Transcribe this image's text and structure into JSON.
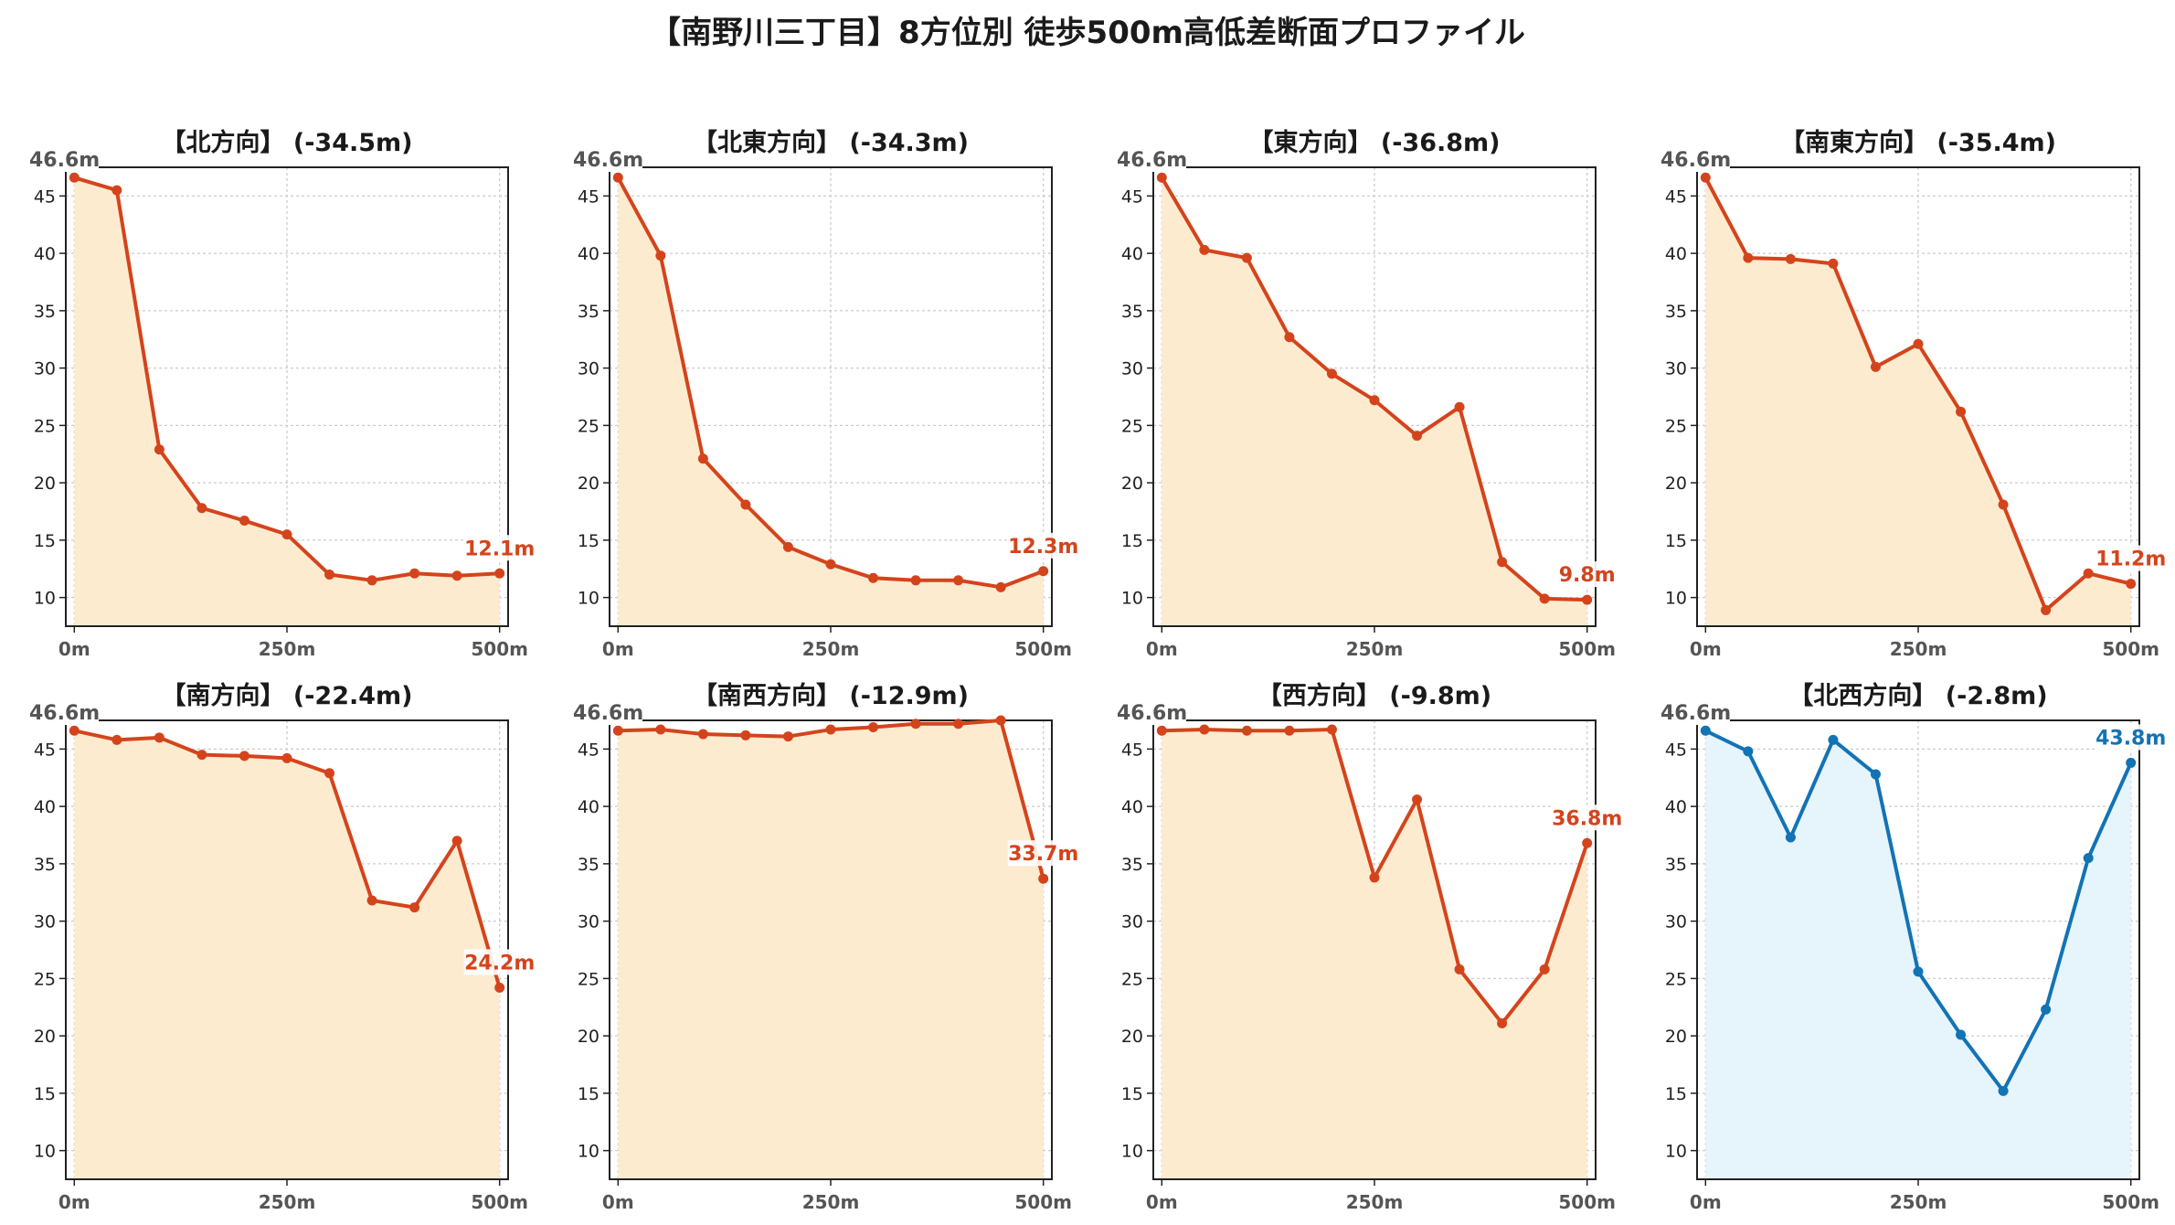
{
  "title": "【南野川三丁目】8方位別 徒歩500m高低差断面プロファイル",
  "chart_data": [
    {
      "type": "area",
      "title": "【北方向】 (-34.5m)",
      "x": [
        0,
        50,
        100,
        150,
        200,
        250,
        300,
        350,
        400,
        450,
        500
      ],
      "values": [
        46.6,
        45.5,
        22.9,
        17.8,
        16.7,
        15.5,
        12.0,
        11.5,
        12.1,
        11.9,
        12.1
      ],
      "start_label": "46.6m",
      "end_label": "12.1m",
      "xticks": [
        "0m",
        "250m",
        "500m"
      ],
      "yticks": [
        "10",
        "15",
        "20",
        "25",
        "30",
        "35",
        "40",
        "45"
      ],
      "ylim": [
        7.5,
        47.5
      ],
      "xlim": [
        -10,
        510
      ],
      "line_color": "#d4441c",
      "fill_color": "#fdebd0",
      "grid": true
    },
    {
      "type": "area",
      "title": "【北東方向】 (-34.3m)",
      "x": [
        0,
        50,
        100,
        150,
        200,
        250,
        300,
        350,
        400,
        450,
        500
      ],
      "values": [
        46.6,
        39.8,
        22.1,
        18.1,
        14.4,
        12.9,
        11.7,
        11.5,
        11.5,
        10.9,
        12.3
      ],
      "start_label": "46.6m",
      "end_label": "12.3m",
      "xticks": [
        "0m",
        "250m",
        "500m"
      ],
      "yticks": [
        "10",
        "15",
        "20",
        "25",
        "30",
        "35",
        "40",
        "45"
      ],
      "ylim": [
        7.5,
        47.5
      ],
      "xlim": [
        -10,
        510
      ],
      "line_color": "#d4441c",
      "fill_color": "#fdebd0",
      "grid": true
    },
    {
      "type": "area",
      "title": "【東方向】 (-36.8m)",
      "x": [
        0,
        50,
        100,
        150,
        200,
        250,
        300,
        350,
        400,
        450,
        500
      ],
      "values": [
        46.6,
        40.3,
        39.6,
        32.7,
        29.5,
        27.2,
        24.1,
        26.6,
        13.1,
        9.9,
        9.8
      ],
      "start_label": "46.6m",
      "end_label": "9.8m",
      "xticks": [
        "0m",
        "250m",
        "500m"
      ],
      "yticks": [
        "10",
        "15",
        "20",
        "25",
        "30",
        "35",
        "40",
        "45"
      ],
      "ylim": [
        7.5,
        47.5
      ],
      "xlim": [
        -10,
        510
      ],
      "line_color": "#d4441c",
      "fill_color": "#fdebd0",
      "grid": true
    },
    {
      "type": "area",
      "title": "【南東方向】 (-35.4m)",
      "x": [
        0,
        50,
        100,
        150,
        200,
        250,
        300,
        350,
        400,
        450,
        500
      ],
      "values": [
        46.6,
        39.6,
        39.5,
        39.1,
        30.1,
        32.1,
        26.2,
        18.1,
        8.9,
        12.1,
        11.2
      ],
      "start_label": "46.6m",
      "end_label": "11.2m",
      "xticks": [
        "0m",
        "250m",
        "500m"
      ],
      "yticks": [
        "10",
        "15",
        "20",
        "25",
        "30",
        "35",
        "40",
        "45"
      ],
      "ylim": [
        7.5,
        47.5
      ],
      "xlim": [
        -10,
        510
      ],
      "line_color": "#d4441c",
      "fill_color": "#fdebd0",
      "grid": true
    },
    {
      "type": "area",
      "title": "【南方向】 (-22.4m)",
      "x": [
        0,
        50,
        100,
        150,
        200,
        250,
        300,
        350,
        400,
        450,
        500
      ],
      "values": [
        46.6,
        45.8,
        46.0,
        44.5,
        44.4,
        44.2,
        42.9,
        31.8,
        31.2,
        37.0,
        24.2
      ],
      "start_label": "46.6m",
      "end_label": "24.2m",
      "xticks": [
        "0m",
        "250m",
        "500m"
      ],
      "yticks": [
        "10",
        "15",
        "20",
        "25",
        "30",
        "35",
        "40",
        "45"
      ],
      "ylim": [
        7.5,
        47.5
      ],
      "xlim": [
        -10,
        510
      ],
      "line_color": "#d4441c",
      "fill_color": "#fdebd0",
      "grid": true
    },
    {
      "type": "area",
      "title": "【南西方向】 (-12.9m)",
      "x": [
        0,
        50,
        100,
        150,
        200,
        250,
        300,
        350,
        400,
        450,
        500
      ],
      "values": [
        46.6,
        46.7,
        46.3,
        46.2,
        46.1,
        46.7,
        46.9,
        47.2,
        47.2,
        47.5,
        33.7
      ],
      "start_label": "46.6m",
      "end_label": "33.7m",
      "xticks": [
        "0m",
        "250m",
        "500m"
      ],
      "yticks": [
        "10",
        "15",
        "20",
        "25",
        "30",
        "35",
        "40",
        "45"
      ],
      "ylim": [
        7.5,
        47.5
      ],
      "xlim": [
        -10,
        510
      ],
      "line_color": "#d4441c",
      "fill_color": "#fdebd0",
      "grid": true
    },
    {
      "type": "area",
      "title": "【西方向】 (-9.8m)",
      "x": [
        0,
        50,
        100,
        150,
        200,
        250,
        300,
        350,
        400,
        450,
        500
      ],
      "values": [
        46.6,
        46.7,
        46.6,
        46.6,
        46.7,
        33.8,
        40.6,
        25.8,
        21.1,
        25.8,
        36.8
      ],
      "start_label": "46.6m",
      "end_label": "36.8m",
      "xticks": [
        "0m",
        "250m",
        "500m"
      ],
      "yticks": [
        "10",
        "15",
        "20",
        "25",
        "30",
        "35",
        "40",
        "45"
      ],
      "ylim": [
        7.5,
        47.5
      ],
      "xlim": [
        -10,
        510
      ],
      "line_color": "#d4441c",
      "fill_color": "#fdebd0",
      "grid": true
    },
    {
      "type": "area",
      "title": "【北西方向】 (-2.8m)",
      "x": [
        0,
        50,
        100,
        150,
        200,
        250,
        300,
        350,
        400,
        450,
        500
      ],
      "values": [
        46.6,
        44.8,
        37.3,
        45.8,
        42.8,
        25.6,
        20.1,
        15.2,
        22.3,
        35.5,
        43.8
      ],
      "start_label": "46.6m",
      "end_label": "43.8m",
      "xticks": [
        "0m",
        "250m",
        "500m"
      ],
      "yticks": [
        "10",
        "15",
        "20",
        "25",
        "30",
        "35",
        "40",
        "45"
      ],
      "ylim": [
        7.5,
        47.5
      ],
      "xlim": [
        -10,
        510
      ],
      "line_color": "#1273b5",
      "fill_color": "#e6f4fb",
      "grid": true
    }
  ]
}
